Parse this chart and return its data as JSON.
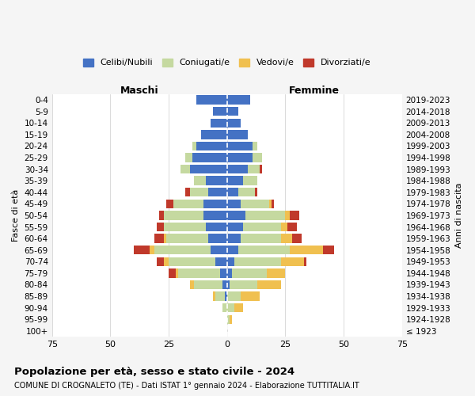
{
  "age_groups": [
    "0-4",
    "5-9",
    "10-14",
    "15-19",
    "20-24",
    "25-29",
    "30-34",
    "35-39",
    "40-44",
    "45-49",
    "50-54",
    "55-59",
    "60-64",
    "65-69",
    "70-74",
    "75-79",
    "80-84",
    "85-89",
    "90-94",
    "95-99",
    "100+"
  ],
  "birth_years": [
    "2019-2023",
    "2014-2018",
    "2009-2013",
    "2004-2008",
    "1999-2003",
    "1994-1998",
    "1989-1993",
    "1984-1988",
    "1979-1983",
    "1974-1978",
    "1969-1973",
    "1964-1968",
    "1959-1963",
    "1954-1958",
    "1949-1953",
    "1944-1948",
    "1939-1943",
    "1934-1938",
    "1929-1933",
    "1924-1928",
    "≤ 1923"
  ],
  "males": {
    "celibi": [
      13,
      6,
      7,
      11,
      13,
      15,
      16,
      9,
      8,
      10,
      10,
      9,
      8,
      7,
      5,
      3,
      2,
      1,
      0,
      0,
      0
    ],
    "coniugati": [
      0,
      0,
      0,
      0,
      2,
      3,
      4,
      5,
      8,
      13,
      17,
      18,
      18,
      24,
      20,
      18,
      12,
      4,
      2,
      0,
      0
    ],
    "vedovi": [
      0,
      0,
      0,
      0,
      0,
      0,
      0,
      0,
      0,
      0,
      0,
      0,
      1,
      2,
      2,
      1,
      2,
      1,
      0,
      0,
      0
    ],
    "divorziati": [
      0,
      0,
      0,
      0,
      0,
      0,
      0,
      0,
      2,
      3,
      2,
      3,
      4,
      7,
      3,
      3,
      0,
      0,
      0,
      0,
      0
    ]
  },
  "females": {
    "nubili": [
      10,
      5,
      6,
      9,
      11,
      11,
      9,
      7,
      5,
      6,
      8,
      7,
      6,
      5,
      3,
      2,
      1,
      0,
      0,
      0,
      0
    ],
    "coniugate": [
      0,
      0,
      0,
      0,
      2,
      4,
      5,
      6,
      7,
      12,
      17,
      16,
      17,
      22,
      20,
      15,
      12,
      6,
      3,
      1,
      0
    ],
    "vedove": [
      0,
      0,
      0,
      0,
      0,
      0,
      0,
      0,
      0,
      1,
      2,
      3,
      5,
      14,
      10,
      8,
      10,
      8,
      4,
      1,
      0
    ],
    "divorziate": [
      0,
      0,
      0,
      0,
      0,
      0,
      1,
      0,
      1,
      1,
      4,
      4,
      4,
      5,
      1,
      0,
      0,
      0,
      0,
      0,
      0
    ]
  },
  "colors": {
    "celibi_nubili": "#4472c4",
    "coniugati": "#c5d9a0",
    "vedovi": "#f0c050",
    "divorziati": "#c0392b"
  },
  "xlim": 75,
  "title": "Popolazione per età, sesso e stato civile - 2024",
  "subtitle": "COMUNE DI CROGNALETO (TE) - Dati ISTAT 1° gennaio 2024 - Elaborazione TUTTITALIA.IT",
  "xlabel_left": "Maschi",
  "xlabel_right": "Femmine",
  "ylabel_left": "Fasce di età",
  "ylabel_right": "Anni di nascita",
  "legend_labels": [
    "Celibi/Nubili",
    "Coniugati/e",
    "Vedovi/e",
    "Divorziati/e"
  ],
  "bg_color": "#f5f5f5",
  "plot_bg_color": "#ffffff"
}
